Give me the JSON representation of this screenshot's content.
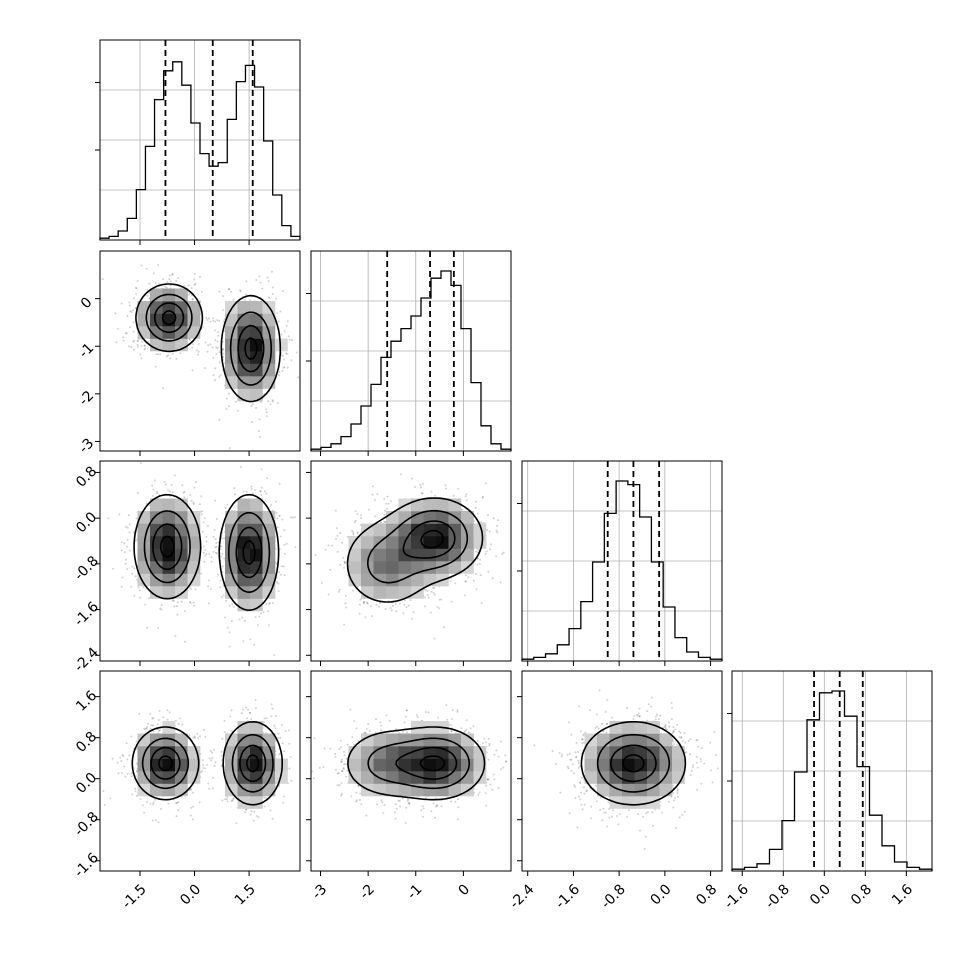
{
  "chart_data": {
    "type": "corner",
    "grid": true,
    "axes_ranges": [
      [
        -2.6,
        2.9
      ],
      [
        -3.2,
        1.0
      ],
      [
        -2.5,
        1.0
      ],
      [
        -1.8,
        2.1
      ]
    ],
    "tick_labels": {
      "x": [
        [
          "-1.5",
          "0.0",
          "1.5"
        ],
        [
          "-3",
          "-2",
          "-1",
          "0"
        ],
        [
          "-2.4",
          "-1.6",
          "-0.8",
          "0.0",
          "0.8"
        ],
        [
          "-1.6",
          "-0.8",
          "0.0",
          "0.8",
          "1.6"
        ]
      ],
      "y": [
        [],
        [
          "0",
          "-1",
          "-2",
          "-3"
        ],
        [
          "0.8",
          "0.0",
          "-0.8",
          "-1.6",
          "-2.4"
        ],
        [
          "1.6",
          "0.8",
          "0.0",
          "-0.8",
          "-1.6"
        ]
      ]
    },
    "quantiles": [
      [
        -0.8,
        0.5,
        1.6
      ],
      [
        -1.6,
        -0.7,
        -0.2
      ],
      [
        -1.0,
        -0.55,
        -0.1
      ],
      [
        -0.2,
        0.3,
        0.75
      ]
    ],
    "histograms": [
      {
        "edges_range": [
          -2.6,
          2.9
        ],
        "counts": [
          0.01,
          0.02,
          0.05,
          0.12,
          0.28,
          0.52,
          0.78,
          0.94,
          0.99,
          0.86,
          0.65,
          0.48,
          0.41,
          0.43,
          0.67,
          0.88,
          0.97,
          0.85,
          0.55,
          0.25,
          0.08,
          0.02
        ]
      },
      {
        "edges_range": [
          -3.2,
          1.0
        ],
        "counts": [
          0.01,
          0.02,
          0.04,
          0.08,
          0.15,
          0.25,
          0.37,
          0.52,
          0.61,
          0.68,
          0.75,
          0.85,
          0.96,
          1.0,
          0.92,
          0.68,
          0.38,
          0.14,
          0.04,
          0.01
        ]
      },
      {
        "edges_range": [
          -2.5,
          1.0
        ],
        "counts": [
          0.01,
          0.02,
          0.04,
          0.09,
          0.18,
          0.33,
          0.55,
          0.82,
          1.0,
          0.98,
          0.8,
          0.55,
          0.3,
          0.13,
          0.05,
          0.02,
          0.01
        ]
      },
      {
        "edges_range": [
          -1.8,
          2.1
        ],
        "counts": [
          0.01,
          0.02,
          0.04,
          0.12,
          0.28,
          0.55,
          0.84,
          0.99,
          1.0,
          0.86,
          0.58,
          0.31,
          0.14,
          0.05,
          0.02,
          0.01
        ]
      }
    ],
    "pairs": [
      {
        "xi": 0,
        "yi": 1,
        "mixture": [
          {
            "w": 0.5,
            "mx": -0.7,
            "my": -0.4,
            "sx": 0.45,
            "sy": 0.35
          },
          {
            "w": 0.5,
            "mx": 1.55,
            "my": -1.05,
            "sx": 0.4,
            "sy": 0.55
          }
        ]
      },
      {
        "xi": 0,
        "yi": 2,
        "mixture": [
          {
            "w": 0.5,
            "mx": -0.75,
            "my": -0.5,
            "sx": 0.45,
            "sy": 0.45
          },
          {
            "w": 0.5,
            "mx": 1.5,
            "my": -0.6,
            "sx": 0.4,
            "sy": 0.5
          }
        ]
      },
      {
        "xi": 0,
        "yi": 3,
        "mixture": [
          {
            "w": 0.5,
            "mx": -0.8,
            "my": 0.3,
            "sx": 0.45,
            "sy": 0.35
          },
          {
            "w": 0.5,
            "mx": 1.6,
            "my": 0.3,
            "sx": 0.4,
            "sy": 0.4
          }
        ]
      },
      {
        "xi": 1,
        "yi": 2,
        "mixture": [
          {
            "w": 0.65,
            "mx": -0.6,
            "my": -0.35,
            "sx": 0.5,
            "sy": 0.35
          },
          {
            "w": 0.35,
            "mx": -1.6,
            "my": -0.8,
            "sx": 0.5,
            "sy": 0.4
          }
        ]
      },
      {
        "xi": 1,
        "yi": 3,
        "mixture": [
          {
            "w": 0.65,
            "mx": -0.55,
            "my": 0.3,
            "sx": 0.5,
            "sy": 0.35
          },
          {
            "w": 0.35,
            "mx": -1.6,
            "my": 0.3,
            "sx": 0.5,
            "sy": 0.35
          }
        ]
      },
      {
        "xi": 2,
        "yi": 3,
        "mixture": [
          {
            "w": 1.0,
            "mx": -0.55,
            "my": 0.3,
            "sx": 0.45,
            "sy": 0.4
          }
        ]
      }
    ]
  }
}
